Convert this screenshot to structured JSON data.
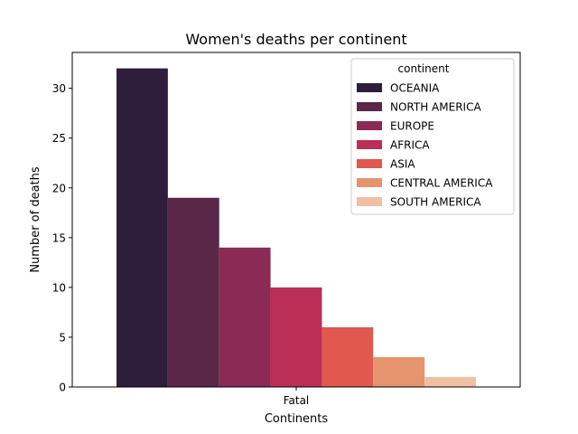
{
  "chart_data": {
    "type": "bar",
    "title": "Women's deaths per continent",
    "xlabel": "Continents",
    "ylabel": "Number of deaths",
    "categories": [
      "Fatal"
    ],
    "ylim": [
      0,
      33.6
    ],
    "yticks": [
      0,
      5,
      10,
      15,
      20,
      25,
      30
    ],
    "grid": false,
    "legend": {
      "title": "continent",
      "placement": "top-right"
    },
    "series": [
      {
        "name": "OCEANIA",
        "values": [
          32
        ],
        "color": "#2e1e3b"
      },
      {
        "name": "NORTH AMERICA",
        "values": [
          19
        ],
        "color": "#5a2748"
      },
      {
        "name": "EUROPE",
        "values": [
          14
        ],
        "color": "#8a2a55"
      },
      {
        "name": "AFRICA",
        "values": [
          10
        ],
        "color": "#bb2e55"
      },
      {
        "name": "ASIA",
        "values": [
          6
        ],
        "color": "#e0584e"
      },
      {
        "name": "CENTRAL AMERICA",
        "values": [
          3
        ],
        "color": "#e6946e"
      },
      {
        "name": "SOUTH AMERICA",
        "values": [
          1
        ],
        "color": "#f0c0a2"
      }
    ]
  }
}
